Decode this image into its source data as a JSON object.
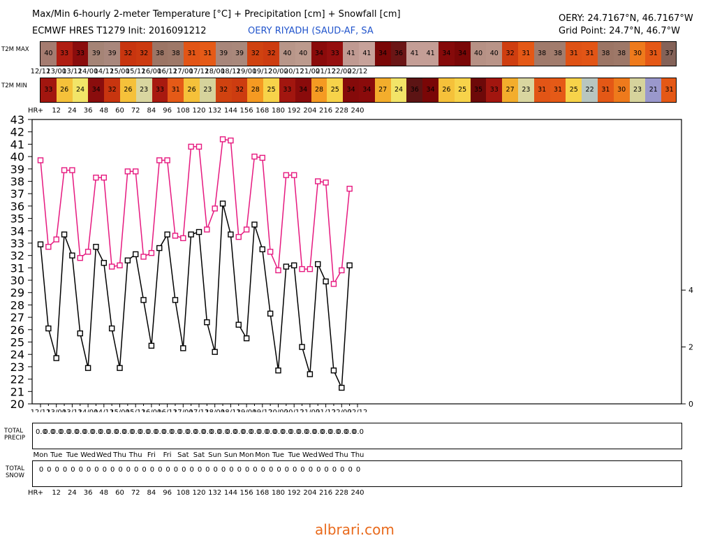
{
  "header": {
    "title_line1": "Max/Min 6-hourly 2-meter Temperature [°C] + Precipitation [cm] + Snowfall [cm]",
    "title_line2": "ECMWF HRES T1279 Init: 2016091212",
    "station": "OERY RIYADH (SAUD-AF, SA",
    "coords": "OERY: 24.7167°N, 46.7167°W",
    "grid_point": "Grid Point: 24.7°N, 46.7°W"
  },
  "labels": {
    "t2m_max": "T2M MAX",
    "t2m_min": "T2M MIN",
    "hr": "HR",
    "total_precip_line1": "TOTAL",
    "total_precip_line2": "PRECIP",
    "total_snow_line1": "TOTAL",
    "total_snow_line2": "SNOW"
  },
  "watermark": "albrari.com",
  "colors": {
    "max_line": "#e6197f",
    "min_line": "#000000",
    "watermark": "#e96a1c",
    "station": "#2255cc"
  },
  "date_ticks": [
    "12/12",
    "13/00",
    "13/12",
    "14/00",
    "14/12",
    "15/00",
    "15/12",
    "16/00",
    "16/12",
    "17/00",
    "17/12",
    "18/00",
    "18/12",
    "19/00",
    "19/12",
    "20/00",
    "20/12",
    "21/00",
    "21/12",
    "22/00",
    "22/12"
  ],
  "hr_ticks": [
    "+",
    "12",
    "24",
    "36",
    "48",
    "60",
    "72",
    "84",
    "96",
    "108",
    "120",
    "132",
    "144",
    "156",
    "168",
    "180",
    "192",
    "204",
    "216",
    "228",
    "240"
  ],
  "weekdays": [
    "Mon",
    "Tue",
    "Tue",
    "Wed",
    "Wed",
    "Thu",
    "Thu",
    "Fri",
    "Fri",
    "Sat",
    "Sat",
    "Sun",
    "Sun",
    "Mon",
    "Mon",
    "Tue",
    "Tue",
    "Wed",
    "Wed",
    "Thu",
    "Thu"
  ],
  "t2m_max_strip": [
    {
      "v": "40",
      "c": "#a57c70"
    },
    {
      "v": "33",
      "c": "#b01e12"
    },
    {
      "v": "33",
      "c": "#8a0d0d"
    },
    {
      "v": "39",
      "c": "#a58476"
    },
    {
      "v": "39",
      "c": "#a9877c"
    },
    {
      "v": "32",
      "c": "#c8350f"
    },
    {
      "v": "32",
      "c": "#cc3a10"
    },
    {
      "v": "38",
      "c": "#9c7565"
    },
    {
      "v": "38",
      "c": "#9e7868"
    },
    {
      "v": "31",
      "c": "#e25516"
    },
    {
      "v": "31",
      "c": "#e55a17"
    },
    {
      "v": "39",
      "c": "#a8867a"
    },
    {
      "v": "39",
      "c": "#a9887b"
    },
    {
      "v": "32",
      "c": "#d04210"
    },
    {
      "v": "32",
      "c": "#cd3c10"
    },
    {
      "v": "40",
      "c": "#b89689"
    },
    {
      "v": "40",
      "c": "#bc9a8d"
    },
    {
      "v": "34",
      "c": "#8a0b0b"
    },
    {
      "v": "33",
      "c": "#950f0f"
    },
    {
      "v": "41",
      "c": "#c09a92"
    },
    {
      "v": "41",
      "c": "#c7a29a"
    },
    {
      "v": "34",
      "c": "#7a0707"
    },
    {
      "v": "36",
      "c": "#6b1616"
    },
    {
      "v": "41",
      "c": "#c49e96"
    },
    {
      "v": "41",
      "c": "#c49e96"
    },
    {
      "v": "34",
      "c": "#850a0a"
    },
    {
      "v": "34",
      "c": "#7a0707"
    },
    {
      "v": "40",
      "c": "#b69185"
    },
    {
      "v": "40",
      "c": "#b99488"
    },
    {
      "v": "32",
      "c": "#cf3e10"
    },
    {
      "v": "31",
      "c": "#e45816"
    },
    {
      "v": "38",
      "c": "#a07a6b"
    },
    {
      "v": "38",
      "c": "#a27c6d"
    },
    {
      "v": "31",
      "c": "#df5215"
    },
    {
      "v": "31",
      "c": "#e25516"
    },
    {
      "v": "38",
      "c": "#9c7565"
    },
    {
      "v": "38",
      "c": "#9e7868"
    },
    {
      "v": "30",
      "c": "#ee7a1c"
    },
    {
      "v": "31",
      "c": "#e45816"
    },
    {
      "v": "37",
      "c": "#846258"
    }
  ],
  "t2m_min_strip": [
    {
      "v": "33",
      "c": "#a2160f"
    },
    {
      "v": "26",
      "c": "#f5c13a"
    },
    {
      "v": "24",
      "c": "#f2e468"
    },
    {
      "v": "34",
      "c": "#8a0d0d"
    },
    {
      "v": "32",
      "c": "#c8350f"
    },
    {
      "v": "26",
      "c": "#f5c13a"
    },
    {
      "v": "23",
      "c": "#d9d6a0"
    },
    {
      "v": "33",
      "c": "#a81a10"
    },
    {
      "v": "31",
      "c": "#e55a17"
    },
    {
      "v": "26",
      "c": "#f5c13a"
    },
    {
      "v": "23",
      "c": "#d6d39c"
    },
    {
      "v": "32",
      "c": "#d04210"
    },
    {
      "v": "32",
      "c": "#cd3c10"
    },
    {
      "v": "28",
      "c": "#f59a22"
    },
    {
      "v": "25",
      "c": "#f7d34a"
    },
    {
      "v": "33",
      "c": "#a2160f"
    },
    {
      "v": "34",
      "c": "#8a0b0b"
    },
    {
      "v": "28",
      "c": "#f59a22"
    },
    {
      "v": "25",
      "c": "#f7d34a"
    },
    {
      "v": "34",
      "c": "#850a0a"
    },
    {
      "v": "34",
      "c": "#8a0b0b"
    },
    {
      "v": "27",
      "c": "#f3ad2c"
    },
    {
      "v": "24",
      "c": "#f2e468"
    },
    {
      "v": "36",
      "c": "#5c1414"
    },
    {
      "v": "34",
      "c": "#7a0707"
    },
    {
      "v": "26",
      "c": "#f5c13a"
    },
    {
      "v": "25",
      "c": "#f7d34a"
    },
    {
      "v": "35",
      "c": "#6d0909"
    },
    {
      "v": "33",
      "c": "#a2160f"
    },
    {
      "v": "27",
      "c": "#f3ad2c"
    },
    {
      "v": "23",
      "c": "#d9d6a0"
    },
    {
      "v": "31",
      "c": "#e25516"
    },
    {
      "v": "31",
      "c": "#e55a17"
    },
    {
      "v": "25",
      "c": "#f7d34a"
    },
    {
      "v": "22",
      "c": "#b8c6c0"
    },
    {
      "v": "31",
      "c": "#e45816"
    },
    {
      "v": "30",
      "c": "#ee7a1c"
    },
    {
      "v": "23",
      "c": "#d6d39c"
    },
    {
      "v": "21",
      "c": "#9a98cc"
    },
    {
      "v": "31",
      "c": "#e45816"
    }
  ],
  "precip_values": [
    "0.0",
    "0.0",
    "0.0",
    "0.0",
    "0.0",
    "0.0",
    "0.0",
    "0.0",
    "0.0",
    "0.0",
    "0.0",
    "0.0",
    "0.0",
    "0.0",
    "0.0",
    "0.0",
    "0.0",
    "0.0",
    "0.0",
    "0.0",
    "0.0",
    "0.0",
    "0.0",
    "0.0",
    "0.0",
    "0.0",
    "0.0",
    "0.0",
    "0.0",
    "0.0",
    "0.0",
    "0.0",
    "0.0",
    "0.0",
    "0.0",
    "0.0",
    "0.0",
    "0.0",
    "0.0",
    "0.0",
    "0.0"
  ],
  "snow_values": [
    "0",
    "0",
    "0",
    "0",
    "0",
    "0",
    "0",
    "0",
    "0",
    "0",
    "0",
    "0",
    "0",
    "0",
    "0",
    "0",
    "0",
    "0",
    "0",
    "0",
    "0",
    "0",
    "0",
    "0",
    "0",
    "0",
    "0",
    "0",
    "0",
    "0",
    "0",
    "0",
    "0",
    "0",
    "0",
    "0",
    "0",
    "0",
    "0",
    "0",
    "0"
  ],
  "chart_data": {
    "type": "line",
    "x_hours": [
      0,
      6,
      12,
      18,
      24,
      30,
      36,
      42,
      48,
      54,
      60,
      66,
      72,
      78,
      84,
      90,
      96,
      102,
      108,
      114,
      120,
      126,
      132,
      138,
      144,
      150,
      156,
      162,
      168,
      174,
      180,
      186,
      192,
      198,
      204,
      210,
      216,
      222,
      228,
      234,
      240
    ],
    "series": [
      {
        "name": "T2M MAX",
        "color": "#e6197f",
        "values": [
          39.7,
          32.7,
          33.3,
          38.9,
          38.9,
          31.8,
          32.3,
          38.3,
          38.3,
          31.1,
          31.2,
          38.8,
          38.8,
          31.9,
          32.2,
          39.7,
          39.7,
          33.6,
          33.4,
          40.8,
          40.8,
          34.1,
          35.8,
          41.4,
          41.3,
          33.5,
          34.1,
          40.0,
          39.9,
          32.3,
          30.8,
          38.5,
          38.5,
          30.9,
          30.9,
          38.0,
          37.9,
          29.7,
          30.8,
          37.4
        ]
      },
      {
        "name": "T2M MIN",
        "color": "#000000",
        "values": [
          32.9,
          26.1,
          23.7,
          33.7,
          32.0,
          25.7,
          22.9,
          32.7,
          31.4,
          26.1,
          22.9,
          31.6,
          32.1,
          28.4,
          24.7,
          32.6,
          33.7,
          28.4,
          24.5,
          33.7,
          33.9,
          26.6,
          24.2,
          36.2,
          33.7,
          26.4,
          25.3,
          34.5,
          32.5,
          27.3,
          22.7,
          31.1,
          31.2,
          24.6,
          22.4,
          31.3,
          29.9,
          22.7,
          21.3,
          31.2
        ]
      }
    ],
    "y_left_ticks": [
      "43",
      "42",
      "41",
      "40",
      "39",
      "38",
      "37",
      "36",
      "35",
      "34",
      "33",
      "32",
      "31",
      "30",
      "29",
      "28",
      "27",
      "26",
      "25",
      "24",
      "23",
      "22",
      "21",
      "20"
    ],
    "y_right_ticks": [
      "4",
      "2",
      "0"
    ],
    "ylim": [
      20,
      43
    ],
    "right_ylim": [
      0,
      10
    ]
  }
}
